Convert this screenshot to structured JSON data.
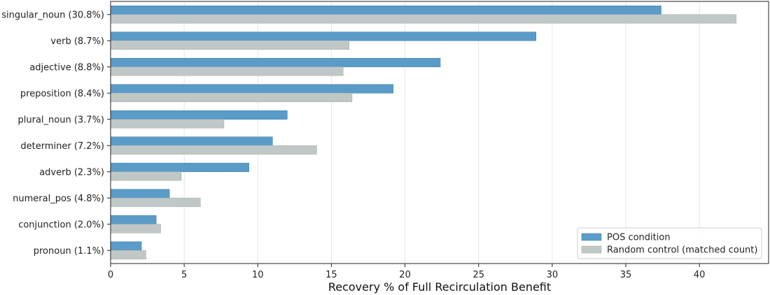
{
  "chart_data": {
    "type": "bar",
    "orientation": "horizontal",
    "categories": [
      "singular_noun (30.8%)",
      "verb (8.7%)",
      "adjective (8.8%)",
      "preposition (8.4%)",
      "plural_noun (3.7%)",
      "determiner (7.2%)",
      "adverb (2.3%)",
      "numeral_pos (4.8%)",
      "conjunction (2.0%)",
      "pronoun (1.1%)"
    ],
    "series": [
      {
        "name": "POS condition",
        "color": "#5b9bc8",
        "values": [
          37.4,
          28.9,
          22.4,
          19.2,
          12.0,
          11.0,
          9.4,
          4.0,
          3.1,
          2.1
        ]
      },
      {
        "name": "Random control (matched count)",
        "color": "#c0c8c7",
        "values": [
          42.5,
          16.2,
          15.8,
          16.4,
          7.7,
          14.0,
          4.8,
          6.1,
          3.4,
          2.4
        ]
      }
    ],
    "xlabel": "Recovery % of Full Recirculation Benefit",
    "ylabel": "",
    "title": "",
    "xlim": [
      0,
      44.7
    ],
    "xticks": [
      "0",
      "5",
      "10",
      "15",
      "20",
      "25",
      "30",
      "35",
      "40"
    ],
    "grid": "x",
    "legend_position": "bottom-right"
  }
}
